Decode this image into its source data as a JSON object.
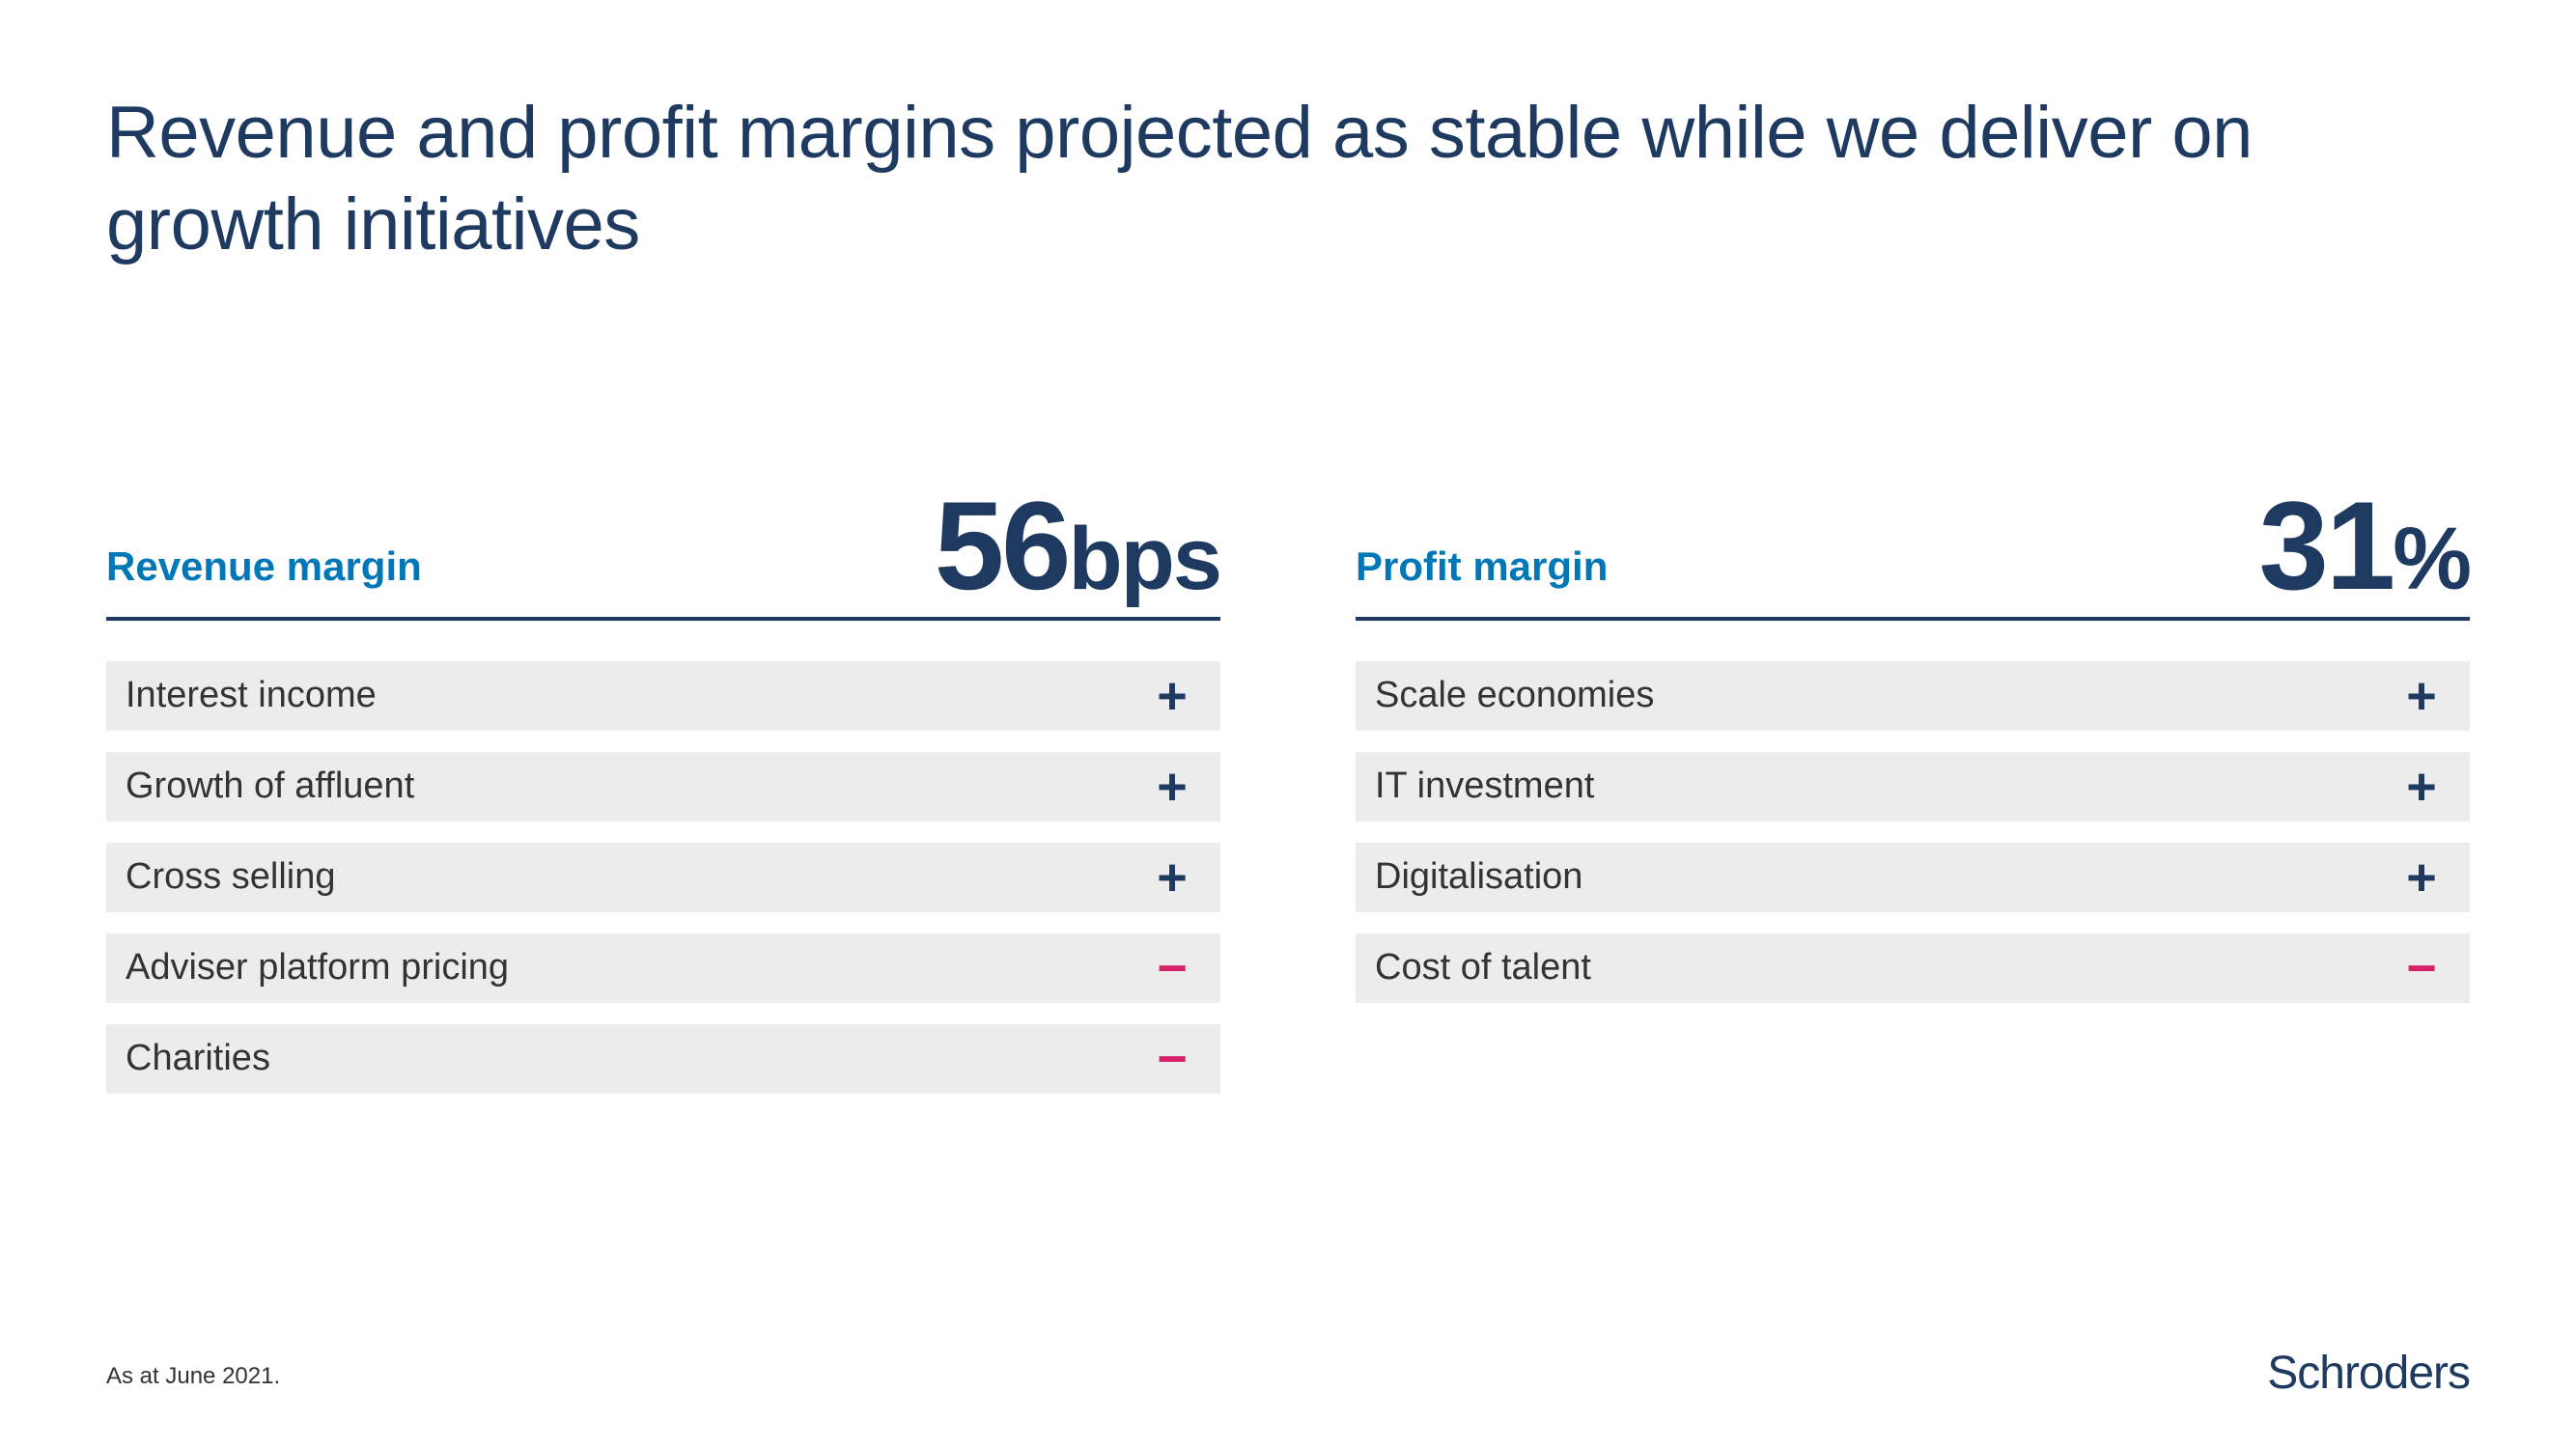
{
  "title": "Revenue and profit margins projected as stable while we deliver on growth initiatives",
  "colors": {
    "primary_text": "#1f3a60",
    "accent_blue": "#0077b6",
    "row_bg": "#ececec",
    "row_text": "#333333",
    "plus_color": "#1f3a60",
    "minus_color": "#d6226a",
    "background": "#ffffff"
  },
  "typography": {
    "title_fontsize": 76,
    "col_label_fontsize": 42,
    "col_value_fontsize": 130,
    "col_unit_fontsize": 92,
    "row_label_fontsize": 38,
    "footnote_fontsize": 24,
    "logo_fontsize": 48
  },
  "left": {
    "label": "Revenue margin",
    "value": "56",
    "unit": "bps",
    "rows": [
      {
        "label": "Interest income",
        "sign": "+"
      },
      {
        "label": "Growth of affluent",
        "sign": "+"
      },
      {
        "label": "Cross selling",
        "sign": "+"
      },
      {
        "label": "Adviser platform pricing",
        "sign": "−"
      },
      {
        "label": "Charities",
        "sign": "−"
      }
    ]
  },
  "right": {
    "label": "Profit margin",
    "value": "31",
    "unit": "%",
    "rows": [
      {
        "label": "Scale economies",
        "sign": "+"
      },
      {
        "label": "IT investment",
        "sign": "+"
      },
      {
        "label": "Digitalisation",
        "sign": "+"
      },
      {
        "label": "Cost of talent",
        "sign": "−"
      }
    ]
  },
  "footnote": "As at June 2021.",
  "logo": "Schroders"
}
